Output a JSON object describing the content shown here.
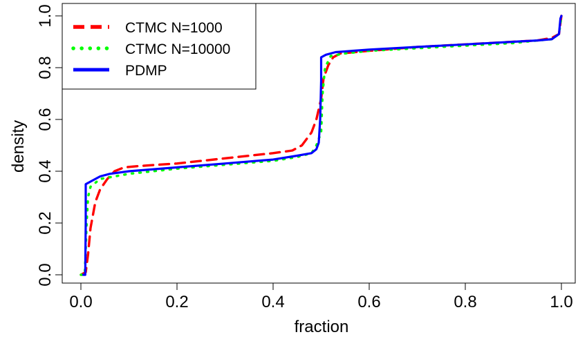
{
  "chart_data": {
    "type": "line",
    "title": "",
    "xlabel": "fraction",
    "ylabel": "density",
    "xlim": [
      0,
      1
    ],
    "ylim": [
      0,
      1
    ],
    "xticks": [
      0.0,
      0.2,
      0.4,
      0.6,
      0.8,
      1.0
    ],
    "xtick_labels": [
      "0.0",
      "0.2",
      "0.4",
      "0.6",
      "0.8",
      "1.0"
    ],
    "yticks": [
      0.0,
      0.2,
      0.4,
      0.6,
      0.8,
      1.0
    ],
    "ytick_labels": [
      "0.0",
      "0.2",
      "0.4",
      "0.6",
      "0.8",
      "1.0"
    ],
    "grid": false,
    "legend_position": "top-left",
    "series": [
      {
        "name": "CTMC N=1000",
        "color": "#ff0000",
        "style": "dashed",
        "points": [
          [
            0.0,
            0.0
          ],
          [
            0.01,
            0.01
          ],
          [
            0.015,
            0.08
          ],
          [
            0.02,
            0.18
          ],
          [
            0.03,
            0.28
          ],
          [
            0.04,
            0.33
          ],
          [
            0.055,
            0.37
          ],
          [
            0.07,
            0.4
          ],
          [
            0.09,
            0.415
          ],
          [
            0.12,
            0.42
          ],
          [
            0.2,
            0.43
          ],
          [
            0.3,
            0.45
          ],
          [
            0.4,
            0.47
          ],
          [
            0.44,
            0.48
          ],
          [
            0.46,
            0.5
          ],
          [
            0.48,
            0.55
          ],
          [
            0.49,
            0.6
          ],
          [
            0.5,
            0.68
          ],
          [
            0.505,
            0.76
          ],
          [
            0.515,
            0.81
          ],
          [
            0.525,
            0.84
          ],
          [
            0.54,
            0.855
          ],
          [
            0.6,
            0.865
          ],
          [
            0.7,
            0.88
          ],
          [
            0.8,
            0.89
          ],
          [
            0.9,
            0.9
          ],
          [
            0.95,
            0.905
          ],
          [
            0.98,
            0.915
          ],
          [
            0.995,
            0.93
          ],
          [
            1.0,
            1.0
          ]
        ]
      },
      {
        "name": "CTMC N=10000",
        "color": "#00ff00",
        "style": "dotted",
        "points": [
          [
            0.0,
            0.0
          ],
          [
            0.008,
            0.0
          ],
          [
            0.01,
            0.1
          ],
          [
            0.012,
            0.2
          ],
          [
            0.015,
            0.3
          ],
          [
            0.02,
            0.34
          ],
          [
            0.04,
            0.37
          ],
          [
            0.07,
            0.38
          ],
          [
            0.1,
            0.39
          ],
          [
            0.2,
            0.41
          ],
          [
            0.3,
            0.425
          ],
          [
            0.4,
            0.44
          ],
          [
            0.45,
            0.455
          ],
          [
            0.48,
            0.47
          ],
          [
            0.49,
            0.5
          ],
          [
            0.5,
            0.55
          ],
          [
            0.503,
            0.7
          ],
          [
            0.508,
            0.8
          ],
          [
            0.52,
            0.845
          ],
          [
            0.55,
            0.855
          ],
          [
            0.6,
            0.865
          ],
          [
            0.7,
            0.875
          ],
          [
            0.8,
            0.885
          ],
          [
            0.9,
            0.895
          ],
          [
            0.95,
            0.905
          ],
          [
            0.98,
            0.91
          ],
          [
            0.995,
            0.93
          ],
          [
            1.0,
            1.0
          ]
        ]
      },
      {
        "name": "PDMP",
        "color": "#0000ff",
        "style": "solid",
        "points": [
          [
            0.005,
            0.0
          ],
          [
            0.009,
            0.0
          ],
          [
            0.01,
            0.2
          ],
          [
            0.01,
            0.35
          ],
          [
            0.02,
            0.36
          ],
          [
            0.04,
            0.38
          ],
          [
            0.06,
            0.39
          ],
          [
            0.1,
            0.4
          ],
          [
            0.2,
            0.415
          ],
          [
            0.3,
            0.43
          ],
          [
            0.4,
            0.445
          ],
          [
            0.45,
            0.46
          ],
          [
            0.48,
            0.47
          ],
          [
            0.49,
            0.485
          ],
          [
            0.495,
            0.51
          ],
          [
            0.498,
            0.6
          ],
          [
            0.5,
            0.75
          ],
          [
            0.5,
            0.84
          ],
          [
            0.51,
            0.85
          ],
          [
            0.53,
            0.86
          ],
          [
            0.6,
            0.87
          ],
          [
            0.7,
            0.88
          ],
          [
            0.8,
            0.89
          ],
          [
            0.9,
            0.9
          ],
          [
            0.95,
            0.905
          ],
          [
            0.98,
            0.91
          ],
          [
            0.995,
            0.93
          ],
          [
            0.998,
            0.99
          ],
          [
            1.0,
            1.0
          ]
        ]
      }
    ]
  }
}
